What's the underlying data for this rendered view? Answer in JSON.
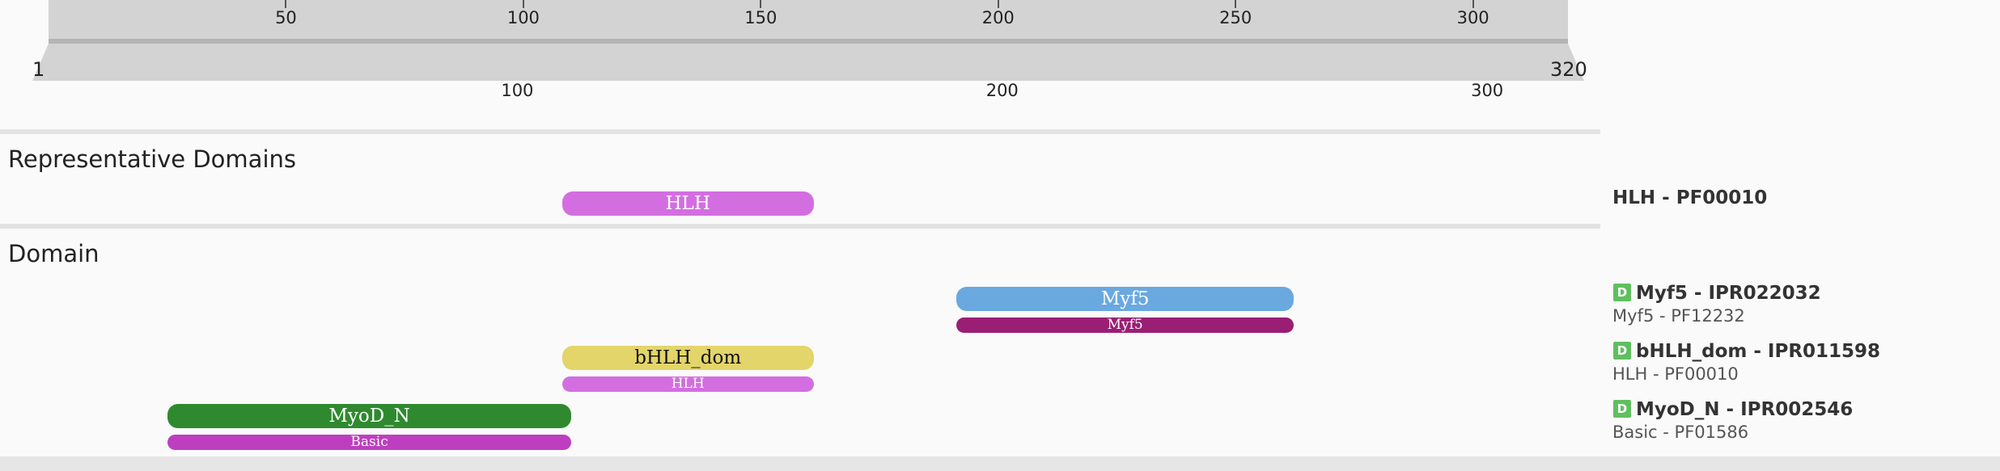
{
  "ruler": {
    "length": 320,
    "start_label": "1",
    "end_label": "320",
    "top_ticks": [
      "50",
      "100",
      "150",
      "200",
      "250",
      "300"
    ],
    "bottom_ticks": [
      "100",
      "200",
      "300"
    ]
  },
  "sections": {
    "representative_domains": "Representative Domains",
    "domain": "Domain"
  },
  "tracks": {
    "representative": [
      {
        "label": "HLH",
        "start": 108,
        "end": 161,
        "color": "#d36ee0"
      }
    ],
    "domain": [
      {
        "main": {
          "label": "Myf5",
          "start": 191,
          "end": 262,
          "color": "#6aa8e0"
        },
        "sub": {
          "label": "Myf5",
          "start": 191,
          "end": 262,
          "color": "#9a1f74"
        }
      },
      {
        "main": {
          "label": "bHLH_dom",
          "start": 108,
          "end": 161,
          "color": "#e3d56a"
        },
        "sub": {
          "label": "HLH",
          "start": 108,
          "end": 161,
          "color": "#d36ee0"
        }
      },
      {
        "main": {
          "label": "MyoD_N",
          "start": 25,
          "end": 110,
          "color": "#2f8a2f"
        },
        "sub": {
          "label": "Basic",
          "start": 25,
          "end": 110,
          "color": "#bd3fc0"
        }
      }
    ]
  },
  "legend": {
    "representative": {
      "title": "HLH - PF00010"
    },
    "domain": [
      {
        "badge": "D",
        "title": "Myf5 - IPR022032",
        "sub": "Myf5 - PF12232"
      },
      {
        "badge": "D",
        "title": "bHLH_dom - IPR011598",
        "sub": "HLH - PF00010"
      },
      {
        "badge": "D",
        "title": "MyoD_N - IPR002546",
        "sub": "Basic - PF01586"
      }
    ]
  }
}
